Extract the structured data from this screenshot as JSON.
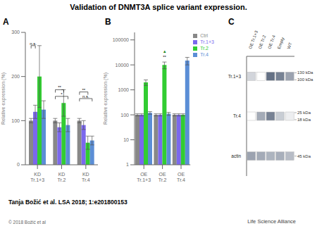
{
  "title": "Validation of DNMT3A splice variant expression.",
  "annotations": [
    {
      "text": "Tanja Božić et al. LSA 2018; 1:e201800153"
    },
    {
      "text": "© 2018 Božić et al"
    },
    {
      "text": "Life Science Alliance"
    }
  ],
  "chart_data": [
    {
      "type": "bar",
      "title": "A",
      "ylabel": "Relative expression (%)",
      "categories": [
        "KD\nTr.1+3",
        "KD\nTr.2",
        "KD\nTr.4"
      ],
      "series": [
        {
          "name": "Ctrl",
          "color": "#888888",
          "values": [
            100,
            100,
            100
          ],
          "errors": [
            5,
            5,
            5
          ]
        },
        {
          "name": "Tr.1+3",
          "color": "#7b68ee",
          "values": [
            120,
            85,
            90
          ],
          "errors": [
            15,
            10,
            10
          ]
        },
        {
          "name": "Tr.2",
          "color": "#32cd32",
          "values": [
            200,
            140,
            50
          ],
          "errors": [
            70,
            30,
            15
          ]
        },
        {
          "name": "Tr.4",
          "color": "#5b8ed6",
          "values": [
            125,
            90,
            55
          ],
          "errors": [
            20,
            15,
            10
          ]
        }
      ],
      "ylim": [
        0,
        300
      ],
      "yticks": [
        0,
        100,
        200,
        300
      ],
      "annotations": [
        {
          "text": "n.s.",
          "category": "KD\nTr.1+3",
          "series": [
            "Ctrl",
            "Tr.1+3"
          ],
          "y": 270
        },
        {
          "text": "**",
          "category": "KD\nTr.2",
          "series": [
            "Ctrl",
            "Tr.2"
          ],
          "y": 170
        },
        {
          "text": "*",
          "category": "KD\nTr.2",
          "series": [
            "Ctrl",
            "Tr.4"
          ],
          "y": 155
        },
        {
          "text": "n.s.",
          "category": "KD\nTr.4",
          "series": [
            "Ctrl",
            "Tr.4"
          ],
          "y": 150
        },
        {
          "text": "**",
          "category": "KD\nTr.4",
          "series": [
            "Ctrl",
            "Tr.2"
          ],
          "y": 165
        }
      ]
    },
    {
      "type": "bar",
      "title": "B",
      "ylabel": "Relative expression (%)",
      "categories": [
        "OE\nTr.1+3",
        "OE\nTr.2",
        "OE\nTr.4"
      ],
      "series": [
        {
          "name": "Ctrl",
          "color": "#888888",
          "values": [
            100,
            100,
            100
          ],
          "errors": [
            10,
            10,
            10
          ]
        },
        {
          "name": "Tr.1+3",
          "color": "#7b68ee",
          "values": [
            100,
            100,
            100
          ],
          "errors": [
            10,
            10,
            10
          ]
        },
        {
          "name": "Tr.2",
          "color": "#32cd32",
          "values": [
            2000,
            10000,
            100
          ],
          "errors": [
            500,
            3000,
            10
          ]
        },
        {
          "name": "Tr.4",
          "color": "#5b8ed6",
          "values": [
            120,
            110,
            15000
          ],
          "errors": [
            15,
            15,
            5000
          ]
        }
      ],
      "log": "y",
      "ylim": [
        1,
        200000
      ],
      "yticks": [
        1,
        10,
        100,
        1000,
        10000,
        100000
      ],
      "legend": "upper right",
      "annotations": [
        {
          "text": "**",
          "category": "OE\nTr.2",
          "series": "Tr.2",
          "y": 18000
        },
        {
          "text": "▲",
          "category": "OE\nTr.2",
          "series": "Tr.2",
          "y": 30000,
          "color": "#228822"
        }
      ]
    },
    {
      "type": "heatmap",
      "title": "C",
      "categories": [
        "OE Tr.1+3",
        "OE Tr.2",
        "OE Tr.4",
        "Empty",
        "WT"
      ],
      "series": [
        {
          "name": "Tr.1+3",
          "values": [
            0.25,
            0.0,
            0.85,
            0.75,
            0.55
          ]
        },
        {
          "name": "Tr.4",
          "values": [
            0.0,
            0.5,
            0.75,
            0.3,
            0.1
          ]
        },
        {
          "name": "actin",
          "values": [
            0.55,
            0.5,
            0.45,
            0.48,
            0.4
          ]
        }
      ],
      "color": "#4a5870",
      "annotations": [
        {
          "text": "130 kDa",
          "series": "Tr.1+3"
        },
        {
          "text": "100 kDa",
          "series": "Tr.1+3"
        },
        {
          "text": "25 kDa",
          "series": "Tr.4"
        },
        {
          "text": "18 kDa",
          "series": "Tr.4"
        },
        {
          "text": "45 kDa",
          "series": "actin"
        }
      ]
    }
  ]
}
